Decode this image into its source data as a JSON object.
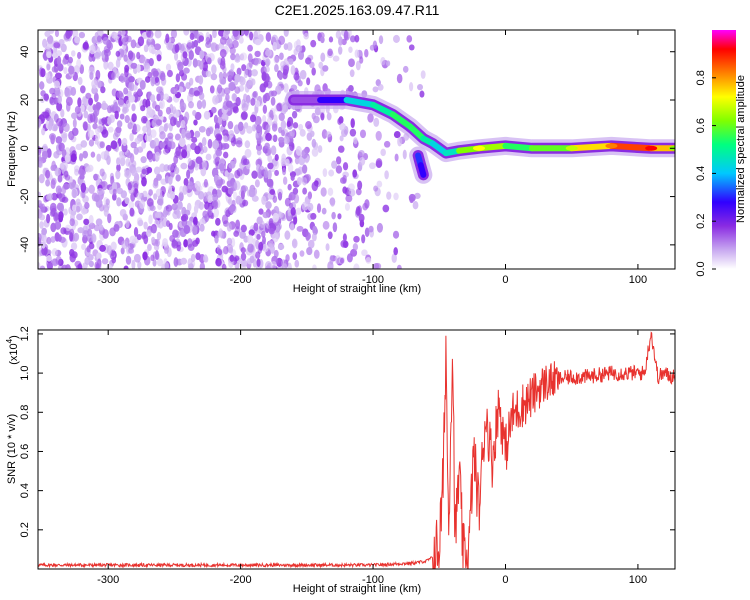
{
  "title": "C2E1.2025.163.09.47.R11",
  "colors": {
    "axis": "#000000",
    "snr_line": "#e8322e",
    "spectrogram_base": "#7a1cf0",
    "background": "#ffffff"
  },
  "chart_data": [
    {
      "type": "heatmap",
      "xlabel": "Height of straight line (km)",
      "ylabel": "Frequency (Hz)",
      "xlim": [
        -353,
        128
      ],
      "ylim": [
        -50,
        49
      ],
      "xticks": [
        -300,
        -200,
        -100,
        0,
        100
      ],
      "xtick_labels": [
        "-300",
        "-200",
        "-100",
        "0",
        "100"
      ],
      "yticks": [
        -40,
        -20,
        0,
        20,
        40
      ],
      "ytick_labels": [
        "-40",
        "-20",
        "0",
        "20",
        "40"
      ],
      "colorbar": {
        "label": "Normalized spectral amplitude",
        "range": [
          0.0,
          1.0
        ],
        "ticks": [
          0.0,
          0.2,
          0.4,
          0.6,
          0.8
        ],
        "tick_labels": [
          "0.0",
          "0.2",
          "0.4",
          "0.6",
          "0.8"
        ],
        "colors": [
          "#ffffff",
          "#c8a8f0",
          "#8a2be2",
          "#3000ff",
          "#00c8ff",
          "#00ff80",
          "#80ff00",
          "#ffff00",
          "#ff8000",
          "#ff0000",
          "#ff00ff"
        ]
      },
      "noise_region": {
        "x_range": [
          -353,
          -60
        ],
        "amplitude_range": [
          0.05,
          0.2
        ]
      },
      "signal_track": [
        {
          "x": -160,
          "f": 20,
          "amp": 0.15
        },
        {
          "x": -140,
          "f": 20,
          "amp": 0.2
        },
        {
          "x": -120,
          "f": 20,
          "amp": 0.4
        },
        {
          "x": -100,
          "f": 18,
          "amp": 0.45
        },
        {
          "x": -85,
          "f": 14,
          "amp": 0.5
        },
        {
          "x": -72,
          "f": 9,
          "amp": 0.55
        },
        {
          "x": -62,
          "f": 4,
          "amp": 0.5
        },
        {
          "x": -55,
          "f": 2,
          "amp": 0.45
        },
        {
          "x": -45,
          "f": -2,
          "amp": 0.4
        },
        {
          "x": -35,
          "f": -1,
          "amp": 0.5
        },
        {
          "x": -20,
          "f": 0,
          "amp": 0.7
        },
        {
          "x": 0,
          "f": 1,
          "amp": 0.55
        },
        {
          "x": 20,
          "f": 0,
          "amp": 0.5
        },
        {
          "x": 50,
          "f": 0,
          "amp": 0.65
        },
        {
          "x": 80,
          "f": 1,
          "amp": 0.8
        },
        {
          "x": 110,
          "f": 0,
          "amp": 0.9
        },
        {
          "x": 128,
          "f": 0,
          "amp": 0.6
        }
      ],
      "branch_track": [
        {
          "x": -66,
          "f": -3,
          "amp": 0.35
        },
        {
          "x": -64,
          "f": -7,
          "amp": 0.3
        },
        {
          "x": -62,
          "f": -11,
          "amp": 0.3
        }
      ]
    },
    {
      "type": "line",
      "xlabel": "Height of straight line (km)",
      "ylabel": "SNR (10 * v/v)",
      "yscale_label": "(x10",
      "yscale_exponent": "4",
      "yscale_suffix": ")",
      "xlim": [
        -353,
        128
      ],
      "ylim": [
        0,
        1.22
      ],
      "xticks": [
        -300,
        -200,
        -100,
        0,
        100
      ],
      "xtick_labels": [
        "-300",
        "-200",
        "-100",
        "0",
        "100"
      ],
      "yticks": [
        0.2,
        0.4,
        0.6,
        0.8,
        1.0,
        1.2
      ],
      "ytick_labels": [
        "0.2",
        "0.4",
        "0.6",
        "0.8",
        "1.0",
        "1.2"
      ],
      "series": [
        {
          "color": "#e8322e",
          "x": [
            -353,
            -300,
            -200,
            -100,
            -70,
            -60,
            -55,
            -50,
            -47,
            -45,
            -43,
            -40,
            -38,
            -35,
            -32,
            -28,
            -24,
            -20,
            -15,
            -10,
            -5,
            0,
            5,
            10,
            15,
            20,
            25,
            30,
            35,
            40,
            50,
            60,
            70,
            80,
            90,
            100,
            105,
            110,
            115,
            120,
            125,
            128
          ],
          "y": [
            0.02,
            0.02,
            0.02,
            0.02,
            0.03,
            0.04,
            0.06,
            0.12,
            0.45,
            1.15,
            0.2,
            1.16,
            0.15,
            0.5,
            0.08,
            0.05,
            0.6,
            0.3,
            0.8,
            0.55,
            0.85,
            0.6,
            0.78,
            0.82,
            0.85,
            0.88,
            0.92,
            0.95,
            0.96,
            0.97,
            0.98,
            0.98,
            0.99,
            1.0,
            1.0,
            1.0,
            1.0,
            1.21,
            0.98,
            1.0,
            0.98,
            1.0
          ]
        }
      ]
    }
  ]
}
